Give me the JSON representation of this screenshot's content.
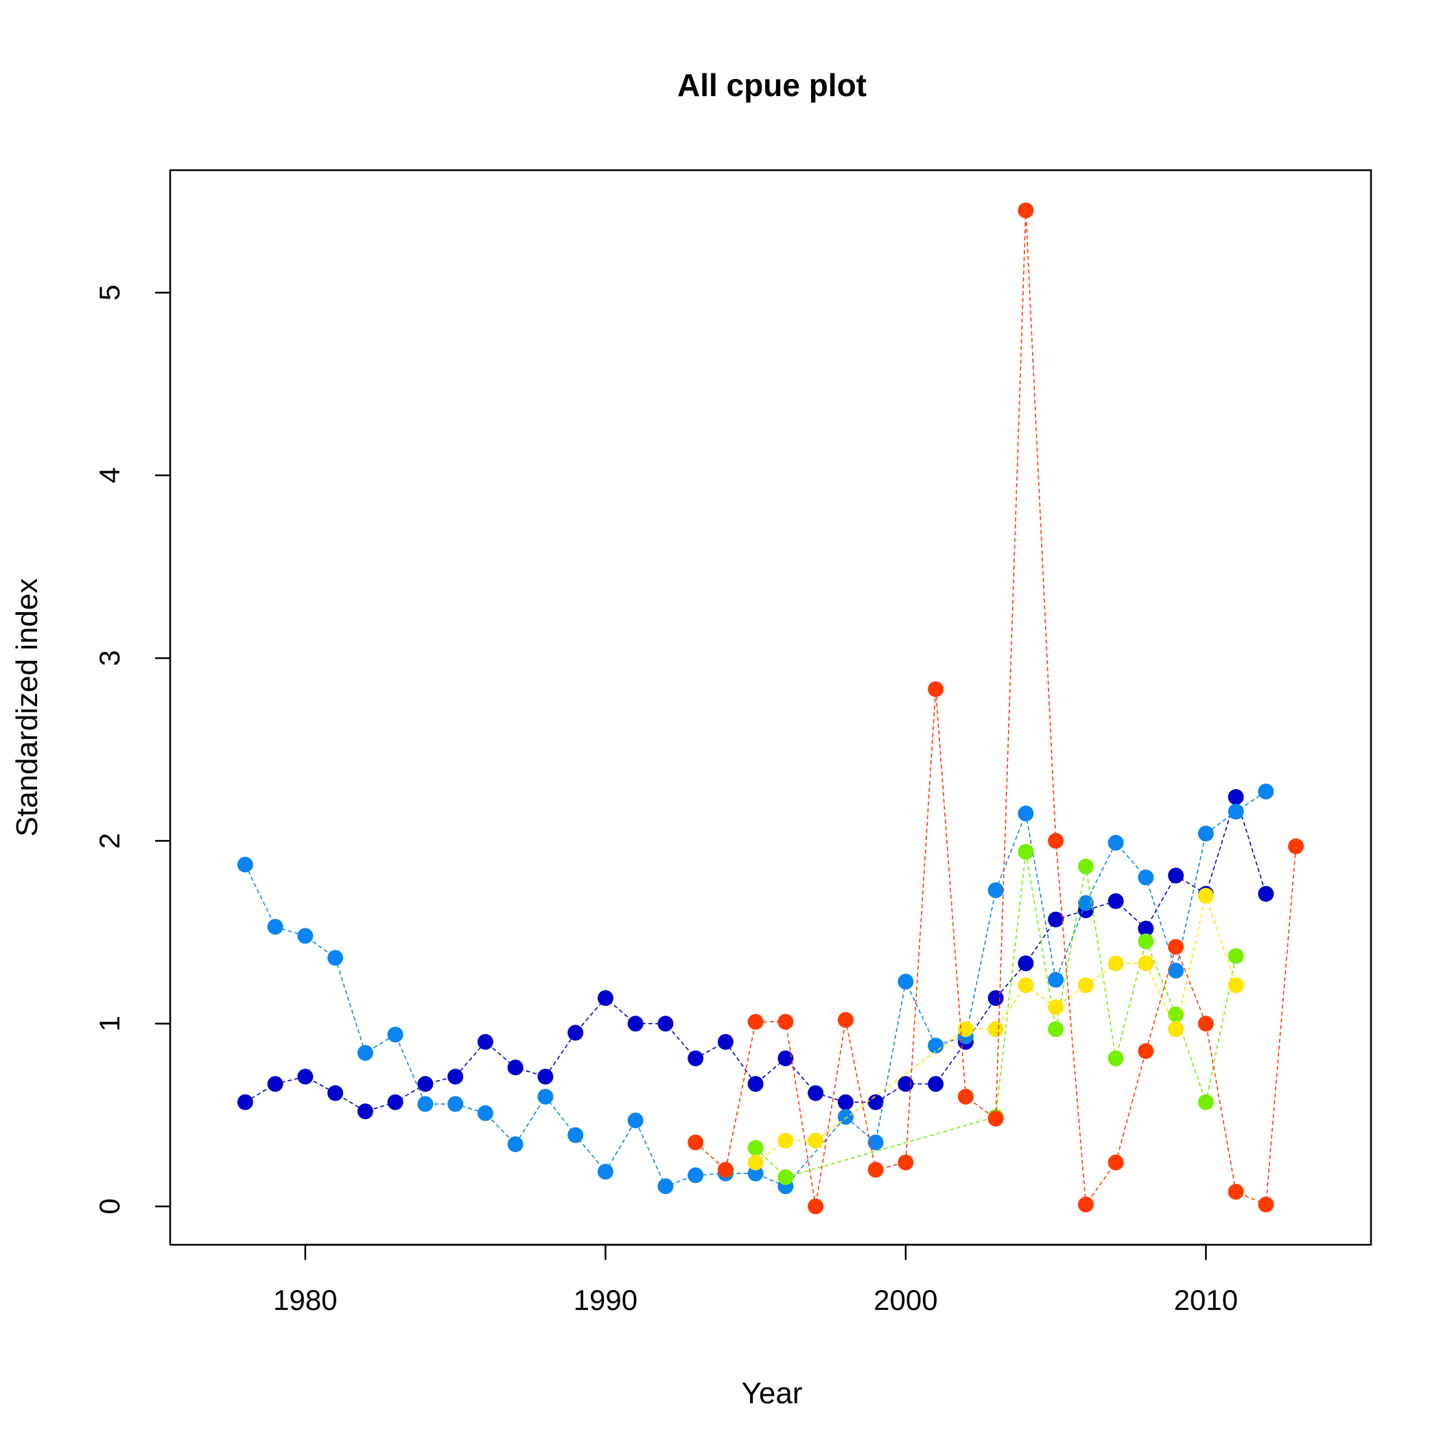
{
  "chart_data": {
    "type": "line",
    "title": "All cpue plot",
    "xlabel": "Year",
    "ylabel": "Standardized index",
    "xlim": [
      1975.5,
      2015.5
    ],
    "ylim": [
      -0.21,
      5.67
    ],
    "xticks": [
      1980,
      1990,
      2000,
      2010
    ],
    "yticks": [
      0,
      1,
      2,
      3,
      4,
      5
    ],
    "grid": false,
    "series": [
      {
        "color": "#0000CC",
        "points": [
          [
            1978,
            0.57
          ],
          [
            1979,
            0.67
          ],
          [
            1980,
            0.71
          ],
          [
            1981,
            0.62
          ],
          [
            1982,
            0.52
          ],
          [
            1983,
            0.57
          ],
          [
            1984,
            0.67
          ],
          [
            1985,
            0.71
          ],
          [
            1986,
            0.9
          ],
          [
            1987,
            0.76
          ],
          [
            1988,
            0.71
          ],
          [
            1989,
            0.95
          ],
          [
            1990,
            1.14
          ],
          [
            1991,
            1.0
          ],
          [
            1992,
            1.0
          ],
          [
            1993,
            0.81
          ],
          [
            1994,
            0.9
          ],
          [
            1995,
            0.67
          ],
          [
            1996,
            0.81
          ],
          [
            1997,
            0.62
          ],
          [
            1998,
            0.57
          ],
          [
            1999,
            0.57
          ],
          [
            2000,
            0.67
          ],
          [
            2001,
            0.67
          ],
          [
            2002,
            0.9
          ],
          [
            2003,
            1.14
          ],
          [
            2004,
            1.33
          ],
          [
            2005,
            1.57
          ],
          [
            2006,
            1.62
          ],
          [
            2007,
            1.67
          ],
          [
            2008,
            1.52
          ],
          [
            2009,
            1.81
          ],
          [
            2010,
            1.71
          ],
          [
            2011,
            2.24
          ],
          [
            2012,
            1.71
          ]
        ]
      },
      {
        "color": "#0A84F2",
        "points": [
          [
            1978,
            1.87
          ],
          [
            1979,
            1.53
          ],
          [
            1980,
            1.48
          ],
          [
            1981,
            1.36
          ],
          [
            1982,
            0.84
          ],
          [
            1983,
            0.94
          ],
          [
            1984,
            0.56
          ],
          [
            1985,
            0.56
          ],
          [
            1986,
            0.51
          ],
          [
            1987,
            0.34
          ],
          [
            1988,
            0.6
          ],
          [
            1989,
            0.39
          ],
          [
            1990,
            0.19
          ],
          [
            1991,
            0.47
          ],
          [
            1992,
            0.11
          ],
          [
            1993,
            0.17
          ],
          [
            1994,
            0.18
          ],
          [
            1995,
            0.18
          ],
          [
            1996,
            0.11
          ],
          [
            1998,
            0.49
          ],
          [
            1999,
            0.35
          ],
          [
            2000,
            1.23
          ],
          [
            2001,
            0.88
          ],
          [
            2002,
            0.93
          ],
          [
            2003,
            1.73
          ],
          [
            2004,
            2.15
          ],
          [
            2005,
            1.24
          ],
          [
            2006,
            1.66
          ],
          [
            2007,
            1.99
          ],
          [
            2008,
            1.8
          ],
          [
            2009,
            1.29
          ],
          [
            2010,
            2.04
          ],
          [
            2011,
            2.16
          ],
          [
            2012,
            2.27
          ]
        ]
      },
      {
        "color": "#74F000",
        "points": [
          [
            1995,
            0.32
          ],
          [
            1996,
            0.16
          ],
          [
            2003,
            0.49
          ],
          [
            2004,
            1.94
          ],
          [
            2005,
            0.97
          ],
          [
            2006,
            1.86
          ],
          [
            2007,
            0.81
          ],
          [
            2008,
            1.45
          ],
          [
            2009,
            1.05
          ],
          [
            2010,
            0.57
          ],
          [
            2011,
            1.37
          ]
        ]
      },
      {
        "color": "#FFE400",
        "points": [
          [
            1995,
            0.24
          ],
          [
            1996,
            0.36
          ],
          [
            1997,
            0.36
          ],
          [
            2002,
            0.97
          ],
          [
            2003,
            0.97
          ],
          [
            2004,
            1.21
          ],
          [
            2005,
            1.09
          ],
          [
            2006,
            1.21
          ],
          [
            2007,
            1.33
          ],
          [
            2008,
            1.33
          ],
          [
            2009,
            0.97
          ],
          [
            2010,
            1.7
          ],
          [
            2011,
            1.21
          ]
        ]
      },
      {
        "color": "#FF3A00",
        "points": [
          [
            1993,
            0.35
          ],
          [
            1994,
            0.2
          ],
          [
            1995,
            1.01
          ],
          [
            1996,
            1.01
          ],
          [
            1997,
            0.0
          ],
          [
            1998,
            1.02
          ],
          [
            1999,
            0.2
          ],
          [
            2000,
            0.24
          ],
          [
            2001,
            2.83
          ],
          [
            2002,
            0.6
          ],
          [
            2003,
            0.48
          ],
          [
            2004,
            5.45
          ],
          [
            2005,
            2.0
          ],
          [
            2006,
            0.01
          ],
          [
            2007,
            0.24
          ],
          [
            2008,
            0.85
          ],
          [
            2009,
            1.42
          ],
          [
            2010,
            1.0
          ],
          [
            2011,
            0.08
          ],
          [
            2012,
            0.01
          ],
          [
            2013,
            1.97
          ]
        ]
      }
    ]
  }
}
